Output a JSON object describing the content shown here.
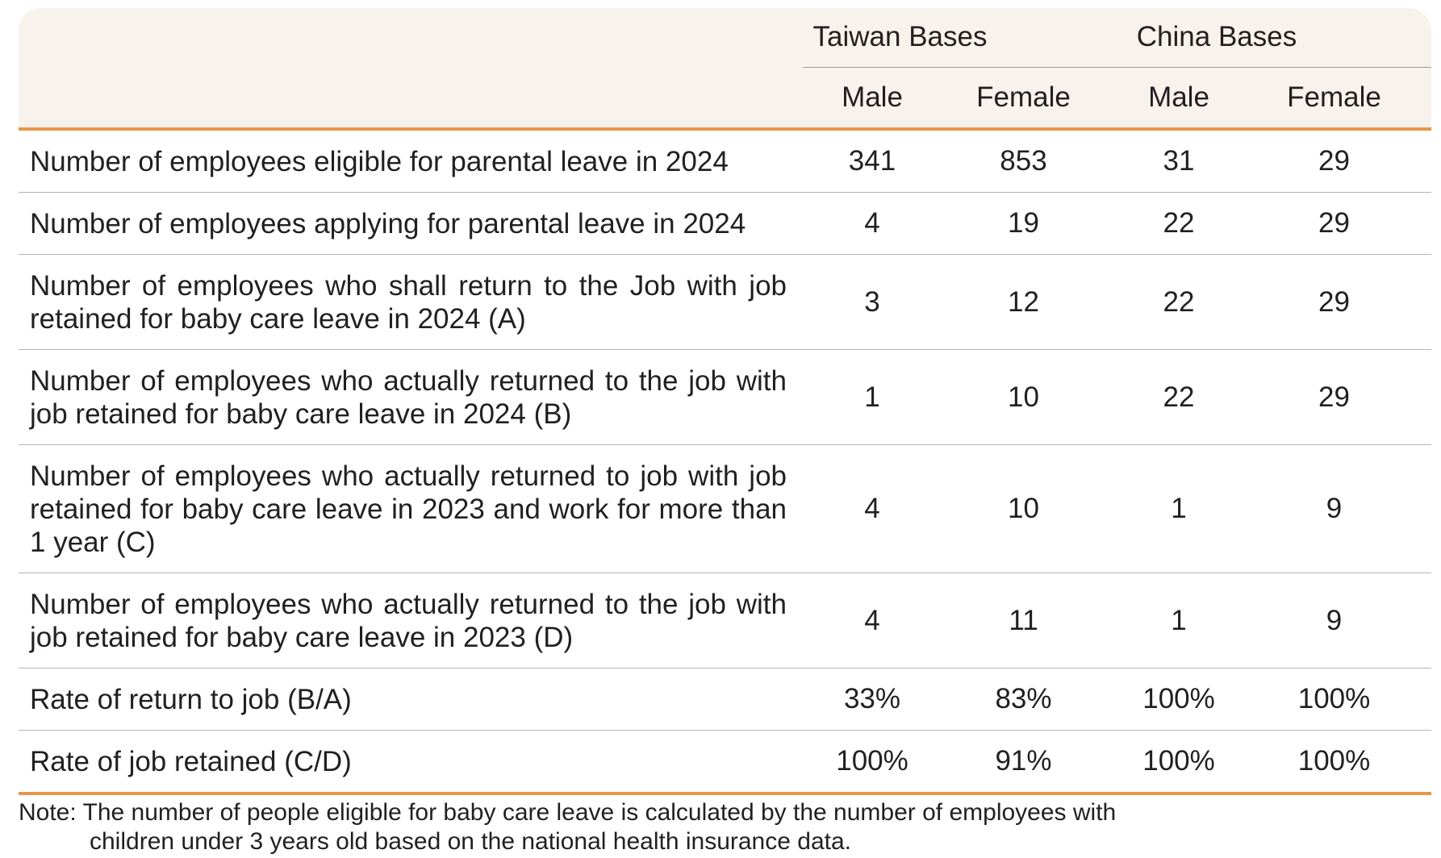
{
  "header": {
    "groups": [
      "Taiwan Bases",
      "China Bases"
    ],
    "subheaders": [
      "Male",
      "Female",
      "Male",
      "Female"
    ]
  },
  "rows": [
    {
      "label": "Number of employees eligible for parental leave in 2024",
      "values": [
        "341",
        "853",
        "31",
        "29"
      ]
    },
    {
      "label": "Number of employees applying for parental leave in 2024",
      "values": [
        "4",
        "19",
        "22",
        "29"
      ]
    },
    {
      "label": "Number of employees who shall return to the Job with job retained for baby care leave in 2024 (A)",
      "values": [
        "3",
        "12",
        "22",
        "29"
      ]
    },
    {
      "label": "Number of employees who actually returned to the job with job retained for baby care leave in 2024 (B)",
      "values": [
        "1",
        "10",
        "22",
        "29"
      ]
    },
    {
      "label": "Number of employees who actually returned to job with job retained for baby care leave in 2023 and work for more than 1 year (C)",
      "values": [
        "4",
        "10",
        "1",
        "9"
      ]
    },
    {
      "label": "Number of employees who actually returned to the job with job retained for baby care leave in 2023 (D)",
      "values": [
        "4",
        "11",
        "1",
        "9"
      ]
    },
    {
      "label": "Rate of return to job (B/A)",
      "values": [
        "33%",
        "83%",
        "100%",
        "100%"
      ]
    },
    {
      "label": "Rate of job retained (C/D)",
      "values": [
        "100%",
        "91%",
        "100%",
        "100%"
      ]
    }
  ],
  "note": {
    "line1": "Note: The number of people eligible for baby care leave is calculated by the number of employees with",
    "line2": "children under 3 years old based on the national health insurance data."
  },
  "colors": {
    "header_bg": "#f8f2ec",
    "accent": "#e9954a"
  }
}
